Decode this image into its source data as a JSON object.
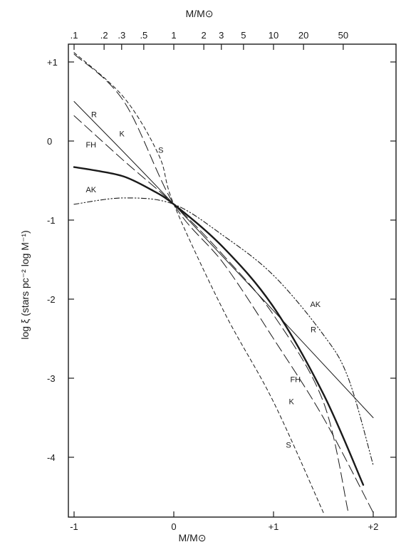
{
  "chart_data": {
    "type": "line",
    "title": "",
    "xlabel": "M/M⊙",
    "ylabel": "log ξ (stars pc⁻² log M⁻¹)",
    "top_xlabel": "M/M⊙",
    "xlim": [
      -1.0,
      2.25
    ],
    "ylim": [
      -4.7,
      1.2
    ],
    "x_ticks": [
      {
        "value": -1,
        "label": "-1"
      },
      {
        "value": 0,
        "label": "0"
      },
      {
        "value": 1,
        "label": "+1"
      },
      {
        "value": 2,
        "label": "+2"
      }
    ],
    "y_ticks": [
      {
        "value": 1,
        "label": "+1"
      },
      {
        "value": 0,
        "label": "0"
      },
      {
        "value": -1,
        "label": "-1"
      },
      {
        "value": -2,
        "label": "-2"
      },
      {
        "value": -3,
        "label": "-3"
      },
      {
        "value": -4,
        "label": "-4"
      }
    ],
    "top_ticks": [
      {
        "value": -1.0,
        "label": ".1"
      },
      {
        "value": -0.699,
        "label": ".2"
      },
      {
        "value": -0.523,
        "label": ".3"
      },
      {
        "value": -0.301,
        "label": ".5"
      },
      {
        "value": 0.0,
        "label": "1"
      },
      {
        "value": 0.301,
        "label": "2"
      },
      {
        "value": 0.477,
        "label": "3"
      },
      {
        "value": 0.699,
        "label": "5"
      },
      {
        "value": 1.0,
        "label": "10"
      },
      {
        "value": 1.301,
        "label": "20"
      },
      {
        "value": 1.699,
        "label": "50"
      }
    ],
    "grid": false,
    "series": [
      {
        "name": "R",
        "style": "solid-thin",
        "x": [
          -1.0,
          0.0,
          2.0
        ],
        "y": [
          0.5,
          -0.8,
          -3.5
        ],
        "label": {
          "text": "R",
          "at": [
            -0.8,
            0.3
          ]
        },
        "label2": {
          "text": "R",
          "at": [
            1.4,
            -2.42
          ]
        }
      },
      {
        "name": "K",
        "style": "long-dash",
        "x": [
          -1.0,
          -0.5,
          0.0,
          0.5,
          1.0,
          1.5,
          2.0
        ],
        "y": [
          1.1,
          0.5,
          -0.8,
          -1.55,
          -2.5,
          -3.5,
          -4.7
        ],
        "label": {
          "text": "K",
          "at": [
            -0.52,
            0.06
          ]
        },
        "label2": {
          "text": "K",
          "at": [
            1.18,
            -3.33
          ]
        }
      },
      {
        "name": "S",
        "style": "short-dash",
        "x": [
          -1.0,
          -0.5,
          -0.15,
          0.0,
          0.5,
          1.0,
          1.5
        ],
        "y": [
          1.12,
          0.55,
          -0.18,
          -0.8,
          -2.15,
          -3.3,
          -4.7
        ],
        "label": {
          "text": "S",
          "at": [
            -0.13,
            -0.15
          ]
        },
        "label2": {
          "text": "S",
          "at": [
            1.15,
            -3.88
          ]
        }
      },
      {
        "name": "FH",
        "style": "long-dash",
        "x": [
          -1.0,
          -0.5,
          0.0,
          0.5,
          1.0,
          1.5,
          1.75
        ],
        "y": [
          0.32,
          -0.25,
          -0.8,
          -1.45,
          -2.2,
          -3.3,
          -4.7
        ],
        "label": {
          "text": "FH",
          "at": [
            -0.83,
            -0.08
          ]
        },
        "label2": {
          "text": "FH",
          "at": [
            1.22,
            -3.05
          ]
        }
      },
      {
        "name": "AK",
        "style": "dash-dot-dot",
        "x": [
          -1.0,
          -0.5,
          0.0,
          0.5,
          1.0,
          1.5,
          1.75,
          2.0
        ],
        "y": [
          -0.8,
          -0.72,
          -0.8,
          -1.2,
          -1.7,
          -2.45,
          -3.0,
          -4.1
        ],
        "label": {
          "text": "AK",
          "at": [
            -0.83,
            -0.65
          ]
        },
        "label2": {
          "text": "AK",
          "at": [
            1.42,
            -2.1
          ]
        }
      },
      {
        "name": "",
        "style": "bold",
        "x": [
          -1.0,
          -0.75,
          -0.5,
          -0.25,
          0.0,
          0.5,
          1.0,
          1.5,
          1.9
        ],
        "y": [
          -0.33,
          -0.38,
          -0.45,
          -0.6,
          -0.8,
          -1.35,
          -2.1,
          -3.2,
          -4.35
        ]
      }
    ]
  }
}
